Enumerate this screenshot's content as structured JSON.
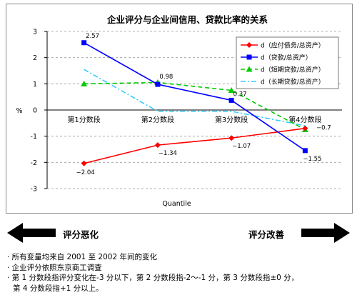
{
  "chart_data": {
    "type": "line",
    "title": "企业评分与企业间信用、贷款比率的关系",
    "xlabel": "Quantile",
    "ylabel": "%",
    "categories": [
      "第1分数段",
      "第2分数段",
      "第3分数段",
      "第4分数段"
    ],
    "ylim": [
      -3,
      3
    ],
    "yticks": [
      "3",
      "2",
      "1",
      "0",
      "-1",
      "-2",
      "-3"
    ],
    "grid": "horizontal dashed",
    "legend_position": "top-right",
    "series": [
      {
        "name": "d（应付债务/总资产）",
        "values": [
          -2.04,
          -1.34,
          -1.07,
          -0.7
        ],
        "color": "#ff0000",
        "marker": "diamond",
        "dash": "solid",
        "labels": [
          "−2.04",
          "−1.34",
          "−1.07",
          "−0.7"
        ]
      },
      {
        "name": "d（贷款/总资产）",
        "values": [
          2.57,
          0.98,
          0.37,
          -1.55
        ],
        "color": "#0000ff",
        "marker": "square",
        "dash": "solid",
        "labels": [
          "2.57",
          "0.98",
          "0.37",
          "−1.55"
        ]
      },
      {
        "name": "d（短期贷款/总资产）",
        "values": [
          1.0,
          1.05,
          0.75,
          -0.75
        ],
        "color": "#00cc00",
        "marker": "triangle",
        "dash": "dashed"
      },
      {
        "name": "d（长期贷款/总资产）",
        "values": [
          1.55,
          -0.05,
          -0.05,
          -0.6
        ],
        "color": "#33ccff",
        "marker": "none",
        "dash": "dashdot"
      }
    ]
  },
  "arrows": {
    "left_label": "评分恶化",
    "right_label": "评分改善"
  },
  "notes": [
    "· 所有变量均来自 2001 至 2002 年间的变化",
    "· 企业评分依照东京商工调查",
    "· 第 1 分数段指评分变化在-3 分以下，第 2 分数段指-2～-1 分，第 3 分数段指±0 分，",
    "第 4 分数段指+1 分以上。"
  ]
}
